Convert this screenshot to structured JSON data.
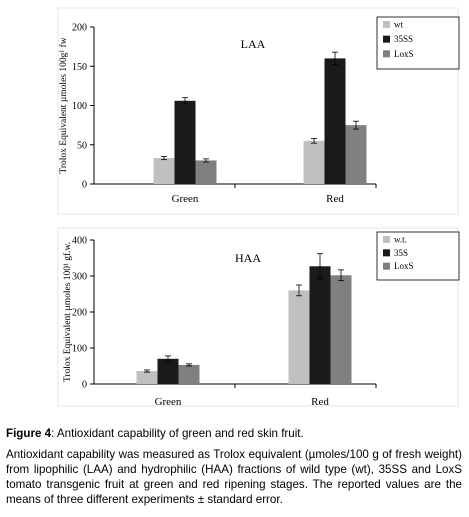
{
  "chart_data": [
    {
      "type": "bar",
      "title": "LAA",
      "ylabel": "Trolox Equivalent µmoles 100g¹ fw",
      "ylim": [
        0,
        200
      ],
      "yticks": [
        0,
        50,
        100,
        150,
        200
      ],
      "categories": [
        "Green",
        "Red"
      ],
      "error_bars": true,
      "legend_position": "top-right",
      "series": [
        {
          "name": "wt",
          "color": "#c0c0c0",
          "values": [
            33,
            55
          ],
          "errors": [
            2,
            3
          ]
        },
        {
          "name": "35SS",
          "color": "#1a1a1a",
          "values": [
            106,
            160
          ],
          "errors": [
            4,
            8
          ]
        },
        {
          "name": "LoxS",
          "color": "#808080",
          "values": [
            30,
            75
          ],
          "errors": [
            2,
            5
          ]
        }
      ]
    },
    {
      "type": "bar",
      "title": "HAA",
      "ylabel": "Trolox Equivalent µmoles 100¹ gf.w.",
      "ylim": [
        0,
        400
      ],
      "yticks": [
        0,
        100,
        200,
        300,
        400
      ],
      "categories": [
        "Green",
        "Red"
      ],
      "error_bars": true,
      "legend_position": "top-right",
      "series": [
        {
          "name": "w.t.",
          "color": "#c0c0c0",
          "values": [
            36,
            260
          ],
          "errors": [
            3,
            15
          ]
        },
        {
          "name": "35S",
          "color": "#1a1a1a",
          "values": [
            70,
            327
          ],
          "errors": [
            8,
            35
          ]
        },
        {
          "name": "LoxS",
          "color": "#808080",
          "values": [
            53,
            302
          ],
          "errors": [
            3,
            15
          ]
        }
      ]
    }
  ],
  "caption": {
    "label": "Figure 4",
    "title_rest": ": Antioxidant capability of green and red skin fruit.",
    "body": "Antioxidant capability was measured as Trolox equivalent (µmoles/100 g of fresh weight) from lipophilic (LAA) and hydrophilic (HAA) fractions of wild type (wt), 35SS and LoxS tomato transgenic fruit at green and red ripening stages. The reported values are the means of three different experiments ± standard error."
  }
}
